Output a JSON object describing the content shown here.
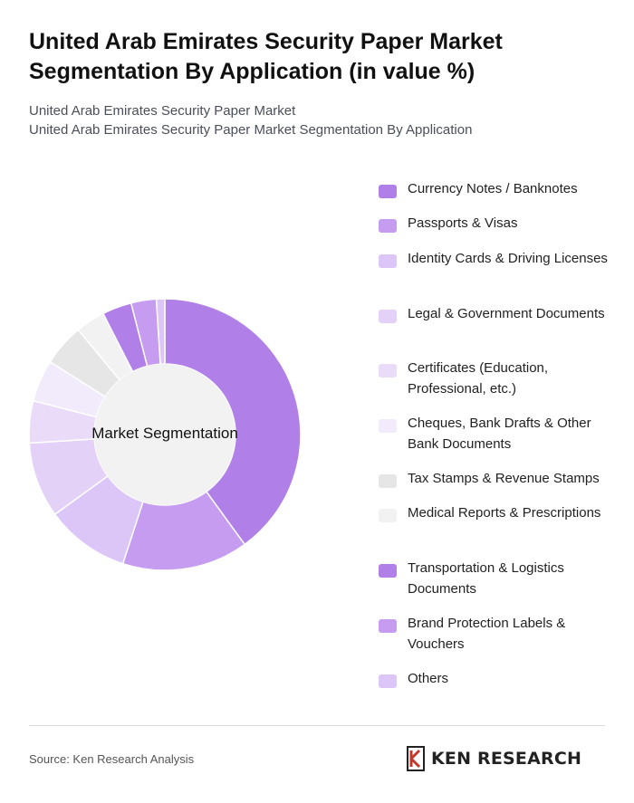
{
  "title": "United Arab Emirates Security Paper Market Segmentation By Application (in value %)",
  "subtitle": {
    "line1": "United Arab Emirates Security Paper Market",
    "line2": "United Arab Emirates Security Paper Market Segmentation By Application"
  },
  "footer": {
    "source": "Source: Ken Research Analysis",
    "brand": "KEN RESEARCH"
  },
  "chart_data": {
    "type": "pie",
    "donut": true,
    "center_label": "Market Segmentation",
    "legend_position": "right",
    "unit": "%",
    "slices": [
      {
        "label": "Currency Notes / Banknotes",
        "value": 40.0,
        "color": "#b07fe8"
      },
      {
        "label": "Passports & Visas",
        "value": 15.0,
        "color": "#c59cf0"
      },
      {
        "label": "Identity Cards & Driving Licenses",
        "value": 10.0,
        "color": "#dcc5f7"
      },
      {
        "label": "Legal & Government Documents",
        "value": 9.0,
        "color": "#e3d1f8"
      },
      {
        "label": "Certificates (Education, Professional, etc.)",
        "value": 5.0,
        "color": "#eadcf9"
      },
      {
        "label": "Cheques, Bank Drafts & Other Bank Documents",
        "value": 5.0,
        "color": "#f2ebfb"
      },
      {
        "label": "Tax Stamps & Revenue Stamps",
        "value": 5.0,
        "color": "#e6e6e6"
      },
      {
        "label": "Medical Reports & Prescriptions",
        "value": 3.5,
        "color": "#f2f2f2"
      },
      {
        "label": "Transportation & Logistics Documents",
        "value": 3.5,
        "color": "#b07fe8"
      },
      {
        "label": "Brand Protection Labels & Vouchers",
        "value": 3.0,
        "color": "#c59cf0"
      },
      {
        "label": "Others",
        "value": 1.0,
        "color": "#dcc5f7"
      }
    ]
  }
}
